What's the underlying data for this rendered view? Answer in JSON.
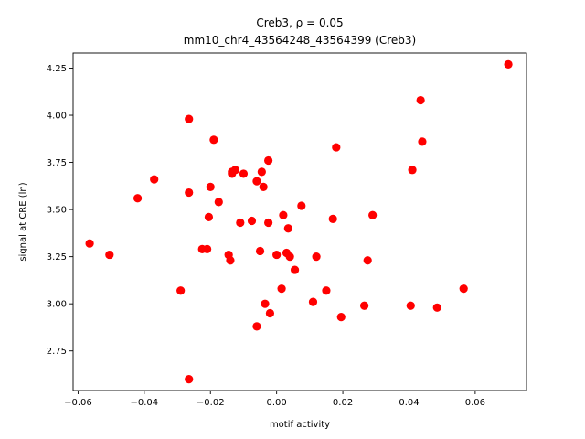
{
  "chart_data": {
    "type": "scatter",
    "title_line1": "Creb3, ρ = 0.05",
    "title_line2": "mm10_chr4_43564248_43564399 (Creb3)",
    "xlabel": "motif activity",
    "ylabel": "signal at CRE (ln)",
    "xlim": [
      -0.0615,
      0.0755
    ],
    "ylim": [
      2.54,
      4.33
    ],
    "xticks": [
      -0.06,
      -0.04,
      -0.02,
      0.0,
      0.02,
      0.04,
      0.06
    ],
    "xtick_labels": [
      "−0.06",
      "−0.04",
      "−0.02",
      "0.00",
      "0.02",
      "0.04",
      "0.06"
    ],
    "yticks": [
      2.75,
      3.0,
      3.25,
      3.5,
      3.75,
      4.0,
      4.25
    ],
    "ytick_labels": [
      "2.75",
      "3.00",
      "3.25",
      "3.50",
      "3.75",
      "4.00",
      "4.25"
    ],
    "marker_color": "#ff0000",
    "grid": false,
    "legend": false,
    "points": [
      {
        "x": -0.0565,
        "y": 3.32
      },
      {
        "x": -0.0505,
        "y": 3.26
      },
      {
        "x": -0.042,
        "y": 3.56
      },
      {
        "x": -0.037,
        "y": 3.66
      },
      {
        "x": -0.029,
        "y": 3.07
      },
      {
        "x": -0.0265,
        "y": 3.98
      },
      {
        "x": -0.0265,
        "y": 3.59
      },
      {
        "x": -0.0265,
        "y": 2.6
      },
      {
        "x": -0.0225,
        "y": 3.29
      },
      {
        "x": -0.021,
        "y": 3.29
      },
      {
        "x": -0.0205,
        "y": 3.46
      },
      {
        "x": -0.02,
        "y": 3.62
      },
      {
        "x": -0.019,
        "y": 3.87
      },
      {
        "x": -0.0175,
        "y": 3.54
      },
      {
        "x": -0.0145,
        "y": 3.26
      },
      {
        "x": -0.014,
        "y": 3.23
      },
      {
        "x": -0.0135,
        "y": 3.7
      },
      {
        "x": -0.0135,
        "y": 3.69
      },
      {
        "x": -0.0125,
        "y": 3.71
      },
      {
        "x": -0.011,
        "y": 3.43
      },
      {
        "x": -0.01,
        "y": 3.69
      },
      {
        "x": -0.0075,
        "y": 3.44
      },
      {
        "x": -0.006,
        "y": 3.65
      },
      {
        "x": -0.006,
        "y": 2.88
      },
      {
        "x": -0.005,
        "y": 3.28
      },
      {
        "x": -0.0045,
        "y": 3.7
      },
      {
        "x": -0.004,
        "y": 3.62
      },
      {
        "x": -0.0035,
        "y": 3.0
      },
      {
        "x": -0.0025,
        "y": 3.76
      },
      {
        "x": -0.0025,
        "y": 3.43
      },
      {
        "x": -0.002,
        "y": 2.95
      },
      {
        "x": 0.0,
        "y": 3.26
      },
      {
        "x": 0.0015,
        "y": 3.08
      },
      {
        "x": 0.002,
        "y": 3.47
      },
      {
        "x": 0.003,
        "y": 3.27
      },
      {
        "x": 0.0035,
        "y": 3.4
      },
      {
        "x": 0.004,
        "y": 3.25
      },
      {
        "x": 0.0055,
        "y": 3.18
      },
      {
        "x": 0.0075,
        "y": 3.52
      },
      {
        "x": 0.011,
        "y": 3.01
      },
      {
        "x": 0.012,
        "y": 3.25
      },
      {
        "x": 0.015,
        "y": 3.07
      },
      {
        "x": 0.017,
        "y": 3.45
      },
      {
        "x": 0.018,
        "y": 3.83
      },
      {
        "x": 0.0195,
        "y": 2.93
      },
      {
        "x": 0.0265,
        "y": 2.99
      },
      {
        "x": 0.0275,
        "y": 3.23
      },
      {
        "x": 0.029,
        "y": 3.47
      },
      {
        "x": 0.0405,
        "y": 2.99
      },
      {
        "x": 0.041,
        "y": 3.71
      },
      {
        "x": 0.0435,
        "y": 4.08
      },
      {
        "x": 0.044,
        "y": 3.86
      },
      {
        "x": 0.0485,
        "y": 2.98
      },
      {
        "x": 0.0565,
        "y": 3.08
      },
      {
        "x": 0.07,
        "y": 4.27
      }
    ]
  }
}
